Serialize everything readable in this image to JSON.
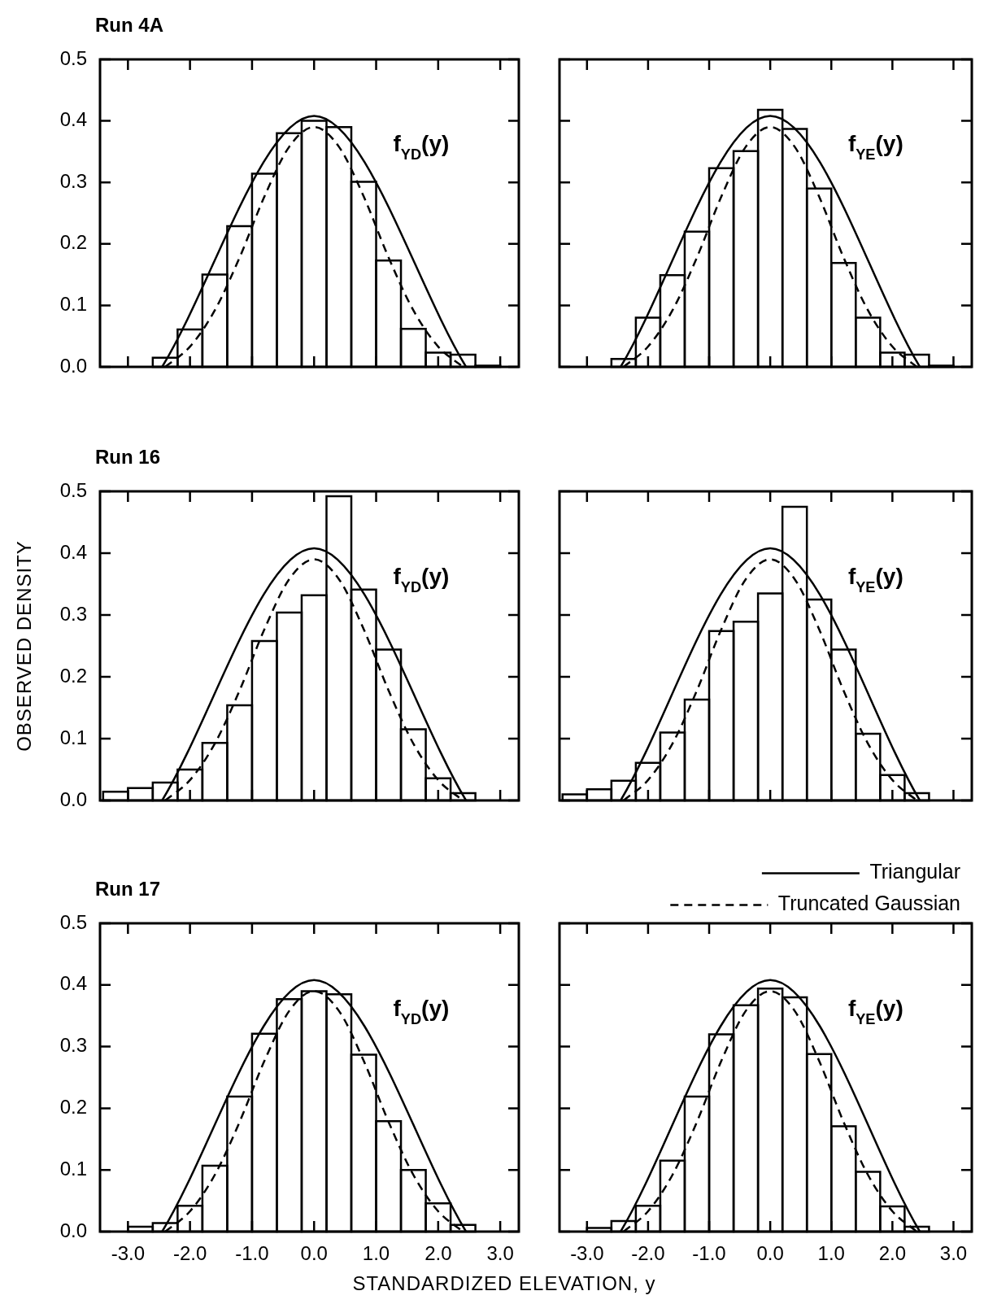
{
  "chart_data": [
    {
      "type": "histogram",
      "title": "Run 4A",
      "bins": [
        -2.6,
        -2.2,
        -1.8,
        -1.4,
        -1.0,
        -0.6,
        -0.2,
        0.2,
        0.6,
        1.0,
        1.4,
        1.8,
        2.2,
        2.6,
        3.0
      ],
      "values": [
        0.015,
        0.061,
        0.15,
        0.229,
        0.314,
        0.38,
        0.4,
        0.39,
        0.301,
        0.173,
        0.062,
        0.023,
        0.02,
        0.002
      ],
      "series": [
        {
          "type": "line",
          "color": "#000000",
          "line_style": "solid",
          "x": [
            -2.449,
            0,
            2.449
          ],
          "values": [
            0,
            0.408,
            0
          ]
        },
        {
          "type": "line",
          "color": "#000000",
          "line_style": "dashed",
          "x": [
            -2.4,
            -2.0,
            -1.6,
            -1.2,
            -0.8,
            -0.4,
            0,
            0.4,
            0.8,
            1.2,
            1.6,
            2.0,
            2.4
          ],
          "values": [
            0,
            0.033,
            0.092,
            0.178,
            0.277,
            0.358,
            0.39,
            0.358,
            0.277,
            0.178,
            0.092,
            0.033,
            0
          ]
        }
      ],
      "annotations": [
        "f$_{YD}$(y)"
      ],
      "marker": "none",
      "tick_labels": "y",
      "xlim": [
        -3.45,
        3.3
      ],
      "ylim": [
        0,
        0.5
      ],
      "xticks": [
        {
          "value": -3,
          "label": null
        },
        {
          "value": -2,
          "label": null
        },
        {
          "value": -1,
          "label": null
        },
        {
          "value": 0,
          "label": null
        },
        {
          "value": 1,
          "label": null
        },
        {
          "value": 2,
          "label": null
        },
        {
          "value": 3,
          "label": null
        }
      ],
      "yticks": [
        {
          "value": 0,
          "label": "0.0"
        },
        {
          "value": 0.1,
          "label": "0.1"
        },
        {
          "value": 0.2,
          "label": "0.2"
        },
        {
          "value": 0.3,
          "label": "0.3"
        },
        {
          "value": 0.4,
          "label": "0.4"
        },
        {
          "value": 0.5,
          "label": "0.5"
        }
      ]
    },
    {
      "type": "histogram",
      "bins": [
        -2.6,
        -2.2,
        -1.8,
        -1.4,
        -1.0,
        -0.6,
        -0.2,
        0.2,
        0.6,
        1.0,
        1.4,
        1.8,
        2.2,
        2.6,
        3.0
      ],
      "values": [
        0.013,
        0.08,
        0.149,
        0.22,
        0.323,
        0.351,
        0.418,
        0.387,
        0.29,
        0.169,
        0.08,
        0.023,
        0.02,
        0.002
      ],
      "series": [
        {
          "type": "line",
          "color": "#000000",
          "line_style": "solid",
          "x": [
            -2.449,
            0,
            2.449
          ],
          "values": [
            0,
            0.408,
            0
          ]
        },
        {
          "type": "line",
          "color": "#000000",
          "line_style": "dashed",
          "x": [
            -2.4,
            -2.0,
            -1.6,
            -1.2,
            -0.8,
            -0.4,
            0,
            0.4,
            0.8,
            1.2,
            1.6,
            2.0,
            2.4
          ],
          "values": [
            0,
            0.033,
            0.092,
            0.178,
            0.277,
            0.358,
            0.39,
            0.358,
            0.277,
            0.178,
            0.092,
            0.033,
            0
          ]
        }
      ],
      "annotations": [
        "f$_{YE}$(y)"
      ],
      "marker": "none",
      "tick_labels": false,
      "xlim": [
        -3.45,
        3.3
      ],
      "ylim": [
        0,
        0.5
      ],
      "xticks": [
        {
          "value": -3,
          "label": null
        },
        {
          "value": -2,
          "label": null
        },
        {
          "value": -1,
          "label": null
        },
        {
          "value": 0,
          "label": null
        },
        {
          "value": 1,
          "label": null
        },
        {
          "value": 2,
          "label": null
        },
        {
          "value": 3,
          "label": null
        }
      ],
      "yticks": [
        {
          "value": 0,
          "label": null
        },
        {
          "value": 0.1,
          "label": null
        },
        {
          "value": 0.2,
          "label": null
        },
        {
          "value": 0.3,
          "label": null
        },
        {
          "value": 0.4,
          "label": null
        },
        {
          "value": 0.5,
          "label": null
        }
      ]
    },
    {
      "type": "histogram",
      "title": "Run 16",
      "ylabel": "OBSERVED DENSITY",
      "bins": [
        -3.4,
        -3.0,
        -2.6,
        -2.2,
        -1.8,
        -1.4,
        -1.0,
        -0.6,
        -0.2,
        0.2,
        0.6,
        1.0,
        1.4,
        1.8,
        2.2,
        2.6
      ],
      "values": [
        0.014,
        0.02,
        0.029,
        0.05,
        0.093,
        0.154,
        0.258,
        0.304,
        0.332,
        0.492,
        0.341,
        0.244,
        0.115,
        0.036,
        0.012
      ],
      "series": [
        {
          "type": "line",
          "color": "#000000",
          "line_style": "solid",
          "x": [
            -2.449,
            0,
            2.449
          ],
          "values": [
            0,
            0.408,
            0
          ]
        },
        {
          "type": "line",
          "color": "#000000",
          "line_style": "dashed",
          "x": [
            -2.4,
            -2.0,
            -1.6,
            -1.2,
            -0.8,
            -0.4,
            0,
            0.4,
            0.8,
            1.2,
            1.6,
            2.0,
            2.4
          ],
          "values": [
            0,
            0.033,
            0.092,
            0.178,
            0.277,
            0.358,
            0.39,
            0.358,
            0.277,
            0.178,
            0.092,
            0.033,
            0
          ]
        }
      ],
      "annotations": [
        "f$_{YD}$(y)"
      ],
      "marker": "none",
      "tick_labels": "y",
      "xlim": [
        -3.45,
        3.3
      ],
      "ylim": [
        0,
        0.5
      ],
      "xticks": [
        {
          "value": -3,
          "label": null
        },
        {
          "value": -2,
          "label": null
        },
        {
          "value": -1,
          "label": null
        },
        {
          "value": 0,
          "label": null
        },
        {
          "value": 1,
          "label": null
        },
        {
          "value": 2,
          "label": null
        },
        {
          "value": 3,
          "label": null
        }
      ],
      "yticks": [
        {
          "value": 0,
          "label": "0.0"
        },
        {
          "value": 0.1,
          "label": "0.1"
        },
        {
          "value": 0.2,
          "label": "0.2"
        },
        {
          "value": 0.3,
          "label": "0.3"
        },
        {
          "value": 0.4,
          "label": "0.4"
        },
        {
          "value": 0.5,
          "label": "0.5"
        }
      ]
    },
    {
      "type": "histogram",
      "bins": [
        -3.4,
        -3.0,
        -2.6,
        -2.2,
        -1.8,
        -1.4,
        -1.0,
        -0.6,
        -0.2,
        0.2,
        0.6,
        1.0,
        1.4,
        1.8,
        2.2,
        2.6
      ],
      "values": [
        0.01,
        0.018,
        0.032,
        0.061,
        0.11,
        0.163,
        0.274,
        0.289,
        0.335,
        0.475,
        0.325,
        0.244,
        0.108,
        0.041,
        0.012
      ],
      "series": [
        {
          "type": "line",
          "color": "#000000",
          "line_style": "solid",
          "x": [
            -2.449,
            0,
            2.449
          ],
          "values": [
            0,
            0.408,
            0
          ]
        },
        {
          "type": "line",
          "color": "#000000",
          "line_style": "dashed",
          "x": [
            -2.4,
            -2.0,
            -1.6,
            -1.2,
            -0.8,
            -0.4,
            0,
            0.4,
            0.8,
            1.2,
            1.6,
            2.0,
            2.4
          ],
          "values": [
            0,
            0.033,
            0.092,
            0.178,
            0.277,
            0.358,
            0.39,
            0.358,
            0.277,
            0.178,
            0.092,
            0.033,
            0
          ]
        }
      ],
      "annotations": [
        "f$_{YE}$(y)"
      ],
      "marker": "none",
      "tick_labels": false,
      "xlim": [
        -3.45,
        3.3
      ],
      "ylim": [
        0,
        0.5
      ],
      "xticks": [
        {
          "value": -3,
          "label": null
        },
        {
          "value": -2,
          "label": null
        },
        {
          "value": -1,
          "label": null
        },
        {
          "value": 0,
          "label": null
        },
        {
          "value": 1,
          "label": null
        },
        {
          "value": 2,
          "label": null
        },
        {
          "value": 3,
          "label": null
        }
      ],
      "yticks": [
        {
          "value": 0,
          "label": null
        },
        {
          "value": 0.1,
          "label": null
        },
        {
          "value": 0.2,
          "label": null
        },
        {
          "value": 0.3,
          "label": null
        },
        {
          "value": 0.4,
          "label": null
        },
        {
          "value": 0.5,
          "label": null
        }
      ]
    },
    {
      "type": "histogram",
      "title": "Run 17",
      "xlabel": "STANDARDIZED ELEVATION, y",
      "bins": [
        -3.0,
        -2.6,
        -2.2,
        -1.8,
        -1.4,
        -1.0,
        -0.6,
        -0.2,
        0.2,
        0.6,
        1.0,
        1.4,
        1.8,
        2.2,
        2.6
      ],
      "values": [
        0.008,
        0.014,
        0.042,
        0.107,
        0.219,
        0.321,
        0.377,
        0.39,
        0.385,
        0.287,
        0.179,
        0.1,
        0.046,
        0.011
      ],
      "series": [
        {
          "type": "line",
          "color": "#000000",
          "line_style": "solid",
          "x": [
            -2.449,
            0,
            2.449
          ],
          "values": [
            0,
            0.408,
            0
          ]
        },
        {
          "type": "line",
          "color": "#000000",
          "line_style": "dashed",
          "x": [
            -2.4,
            -2.0,
            -1.6,
            -1.2,
            -0.8,
            -0.4,
            0,
            0.4,
            0.8,
            1.2,
            1.6,
            2.0,
            2.4
          ],
          "values": [
            0,
            0.033,
            0.092,
            0.178,
            0.277,
            0.358,
            0.39,
            0.358,
            0.277,
            0.178,
            0.092,
            0.033,
            0
          ]
        }
      ],
      "annotations": [
        "f$_{YD}$(y)"
      ],
      "marker": "none",
      "xlim": [
        -3.45,
        3.3
      ],
      "ylim": [
        0,
        0.5
      ],
      "xticks": [
        {
          "value": -3,
          "label": "-3.0"
        },
        {
          "value": -2,
          "label": "-2.0"
        },
        {
          "value": -1,
          "label": "-1.0"
        },
        {
          "value": 0,
          "label": "0.0"
        },
        {
          "value": 1,
          "label": "1.0"
        },
        {
          "value": 2,
          "label": "2.0"
        },
        {
          "value": 3,
          "label": "3.0"
        }
      ],
      "yticks": [
        {
          "value": 0,
          "label": "0.0"
        },
        {
          "value": 0.1,
          "label": "0.1"
        },
        {
          "value": 0.2,
          "label": "0.2"
        },
        {
          "value": 0.3,
          "label": "0.3"
        },
        {
          "value": 0.4,
          "label": "0.4"
        },
        {
          "value": 0.5,
          "label": "0.5"
        }
      ]
    },
    {
      "type": "histogram",
      "bins": [
        -3.0,
        -2.6,
        -2.2,
        -1.8,
        -1.4,
        -1.0,
        -0.6,
        -0.2,
        0.2,
        0.6,
        1.0,
        1.4,
        1.8,
        2.2,
        2.6
      ],
      "values": [
        0.006,
        0.017,
        0.042,
        0.115,
        0.219,
        0.32,
        0.367,
        0.394,
        0.38,
        0.288,
        0.171,
        0.097,
        0.041,
        0.008
      ],
      "series": [
        {
          "type": "line",
          "name": "Triangular",
          "color": "#000000",
          "line_style": "solid",
          "x": [
            -2.449,
            0,
            2.449
          ],
          "values": [
            0,
            0.408,
            0
          ]
        },
        {
          "type": "line",
          "name": "Truncated Gaussian",
          "color": "#000000",
          "line_style": "dashed",
          "x": [
            -2.4,
            -2.0,
            -1.6,
            -1.2,
            -0.8,
            -0.4,
            0,
            0.4,
            0.8,
            1.2,
            1.6,
            2.0,
            2.4
          ],
          "values": [
            0,
            0.033,
            0.092,
            0.178,
            0.277,
            0.358,
            0.39,
            0.358,
            0.277,
            0.178,
            0.092,
            0.033,
            0
          ]
        }
      ],
      "annotations": [
        "f$_{YE}$(y)"
      ],
      "marker": "none",
      "legend": "top right",
      "tick_labels": "x",
      "xlim": [
        -3.45,
        3.3
      ],
      "ylim": [
        0,
        0.5
      ],
      "xticks": [
        {
          "value": -3,
          "label": "-3.0"
        },
        {
          "value": -2,
          "label": "-2.0"
        },
        {
          "value": -1,
          "label": "-1.0"
        },
        {
          "value": 0,
          "label": "0.0"
        },
        {
          "value": 1,
          "label": "1.0"
        },
        {
          "value": 2,
          "label": "2.0"
        },
        {
          "value": 3,
          "label": "3.0"
        }
      ],
      "yticks": [
        {
          "value": 0,
          "label": null
        },
        {
          "value": 0.1,
          "label": null
        },
        {
          "value": 0.2,
          "label": null
        },
        {
          "value": 0.3,
          "label": null
        },
        {
          "value": 0.4,
          "label": null
        },
        {
          "value": 0.5,
          "label": null
        }
      ]
    }
  ]
}
